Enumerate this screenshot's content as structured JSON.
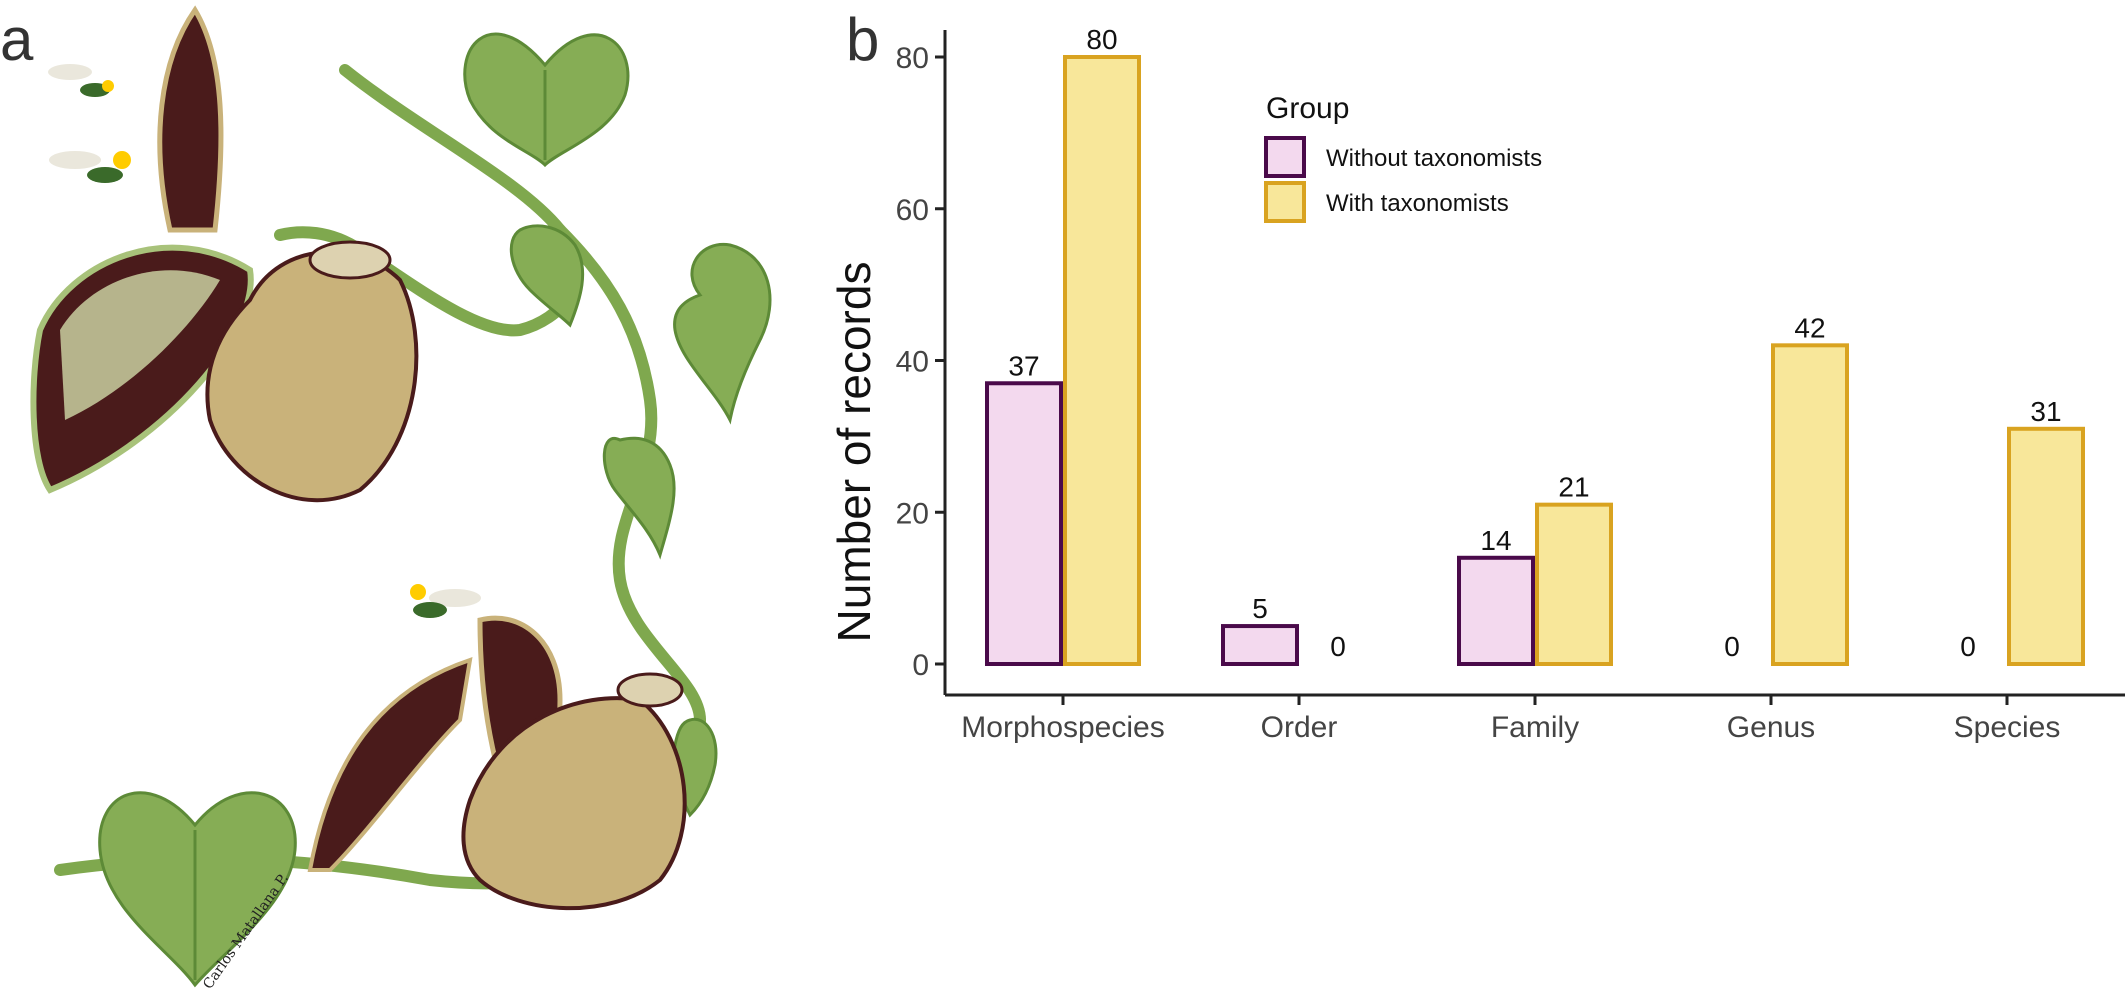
{
  "panels": {
    "a_label": "a",
    "b_label": "b"
  },
  "illustration": {
    "signature": "Carlos Matallana P."
  },
  "colors": {
    "without_fill": "#f3d9ee",
    "without_stroke": "#4a0a4a",
    "with_fill": "#f8e79a",
    "with_stroke": "#d9a320",
    "axis": "#222222",
    "tick_text": "#444444",
    "leaf": "#7fa84e",
    "leaf_dark": "#5d8a37",
    "flower_dark": "#4a1b1b",
    "flower_tan": "#c9b27a"
  },
  "chart_data": {
    "type": "bar",
    "categories": [
      "Morphospecies",
      "Order",
      "Family",
      "Genus",
      "Species"
    ],
    "series": [
      {
        "name": "Without taxonomists",
        "values": [
          37,
          5,
          14,
          0,
          0
        ]
      },
      {
        "name": "With taxonomists",
        "values": [
          80,
          0,
          21,
          42,
          31
        ]
      }
    ],
    "ylabel": "Number of records",
    "xlabel": "",
    "ylim": [
      0,
      84
    ],
    "yticks": [
      0,
      20,
      40,
      60,
      80
    ],
    "legend": {
      "title": "Group",
      "placement": "top-right"
    },
    "data_labels": true,
    "grid": false
  }
}
